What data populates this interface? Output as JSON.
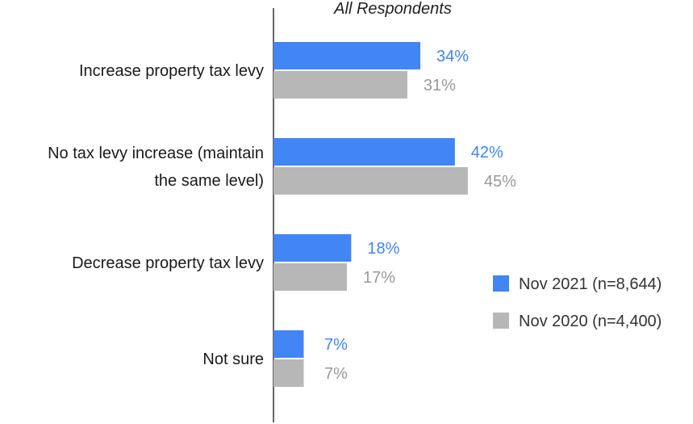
{
  "chart_data": {
    "type": "bar",
    "orientation": "horizontal",
    "title": "",
    "subtitle": "All Respondents",
    "categories": [
      [
        "Increase property tax levy"
      ],
      [
        "No tax levy increase (maintain",
        "the same level)"
      ],
      [
        "Decrease property tax levy"
      ],
      [
        "Not sure"
      ]
    ],
    "series": [
      {
        "name": "Nov 2021 (n=8,644)",
        "color": "#4285f4",
        "values": [
          34,
          42,
          18,
          7
        ],
        "labels": [
          "34%",
          "42%",
          "18%",
          "7%"
        ]
      },
      {
        "name": "Nov 2020 (n=4,400)",
        "color": "#b7b7b7",
        "label_color": "#999999",
        "values": [
          31,
          45,
          17,
          7
        ],
        "labels": [
          "31%",
          "45%",
          "17%",
          "7%"
        ]
      }
    ],
    "xlim": [
      0,
      100
    ],
    "grid": false,
    "legend_position": "right"
  }
}
